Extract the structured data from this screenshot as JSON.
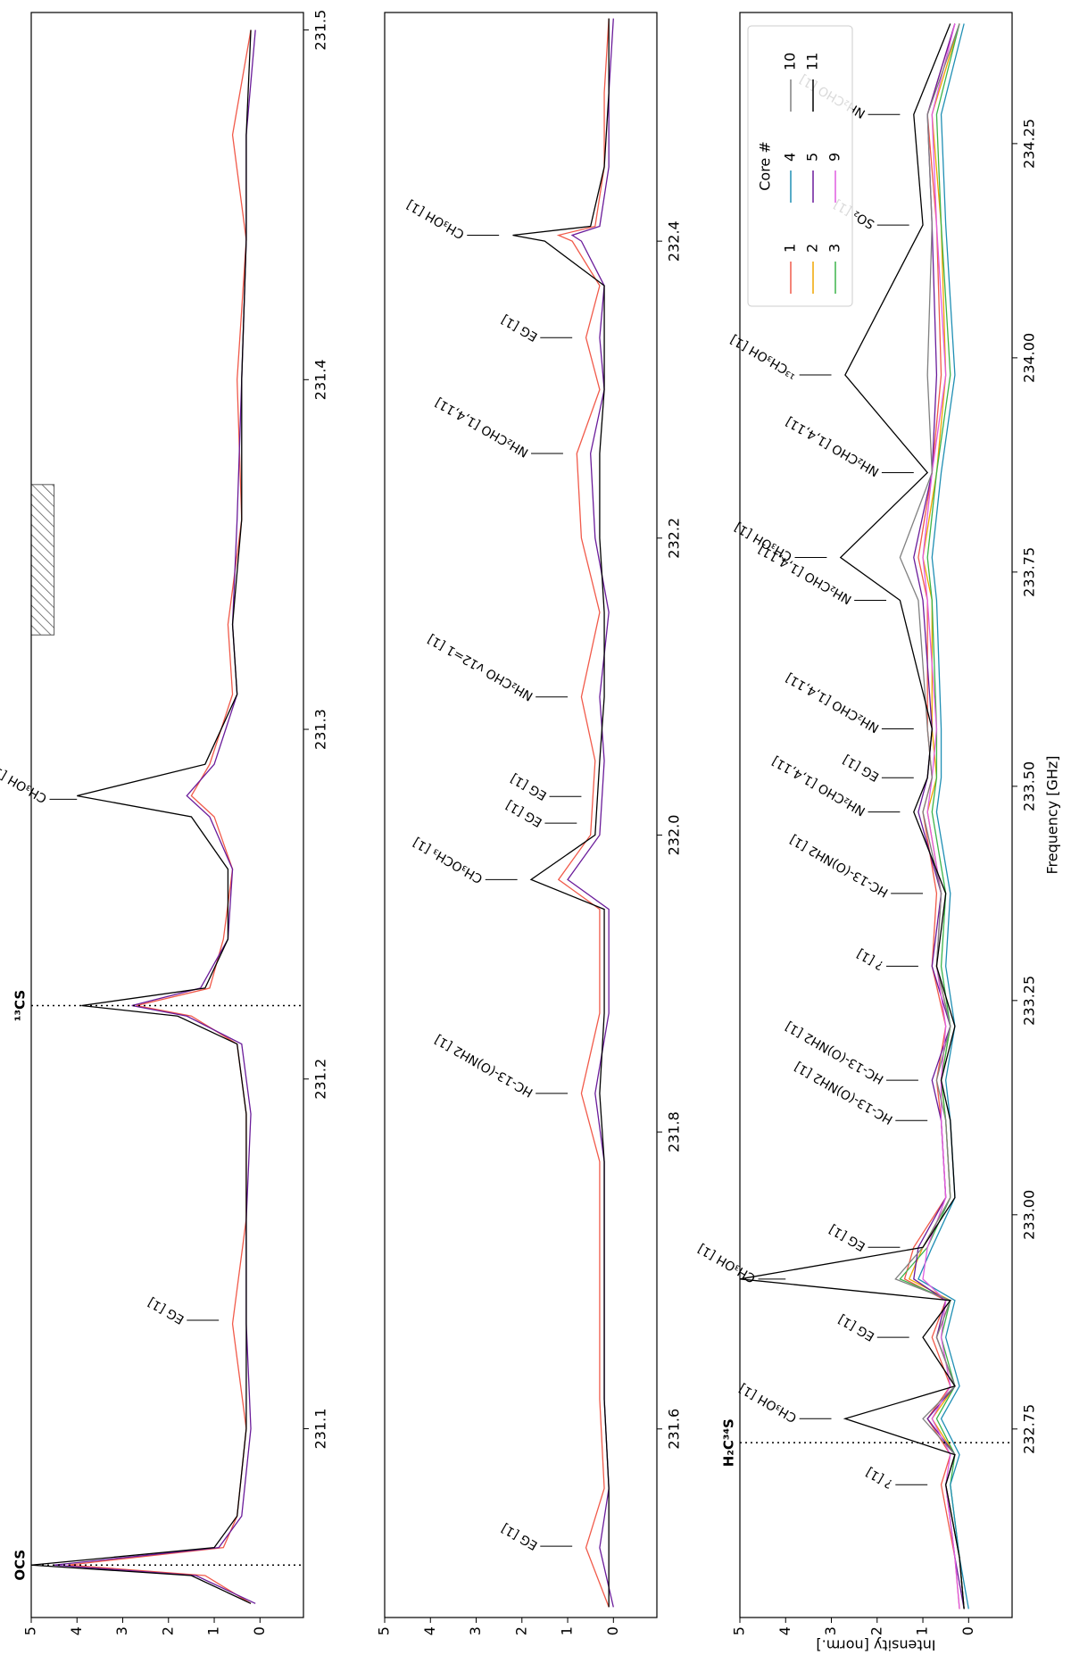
{
  "chart_data": [
    {
      "type": "line",
      "xlim": [
        231.046,
        231.505
      ],
      "xticks": [
        231.1,
        231.2,
        231.3,
        231.4,
        231.5
      ],
      "ylim": [
        -0.95,
        5
      ],
      "yticks": [
        0,
        1,
        2,
        3,
        4,
        5
      ],
      "x": [
        231.05,
        231.058,
        231.061,
        231.066,
        231.075,
        231.1,
        231.13,
        231.16,
        231.19,
        231.21,
        231.218,
        231.221,
        231.226,
        231.24,
        231.26,
        231.275,
        231.281,
        231.29,
        231.31,
        231.33,
        231.36,
        231.4,
        231.44,
        231.47,
        231.5
      ],
      "series": [
        {
          "color": "#f15a4a",
          "values": [
            0.2,
            1.2,
            4.2,
            0.8,
            0.5,
            0.3,
            0.6,
            0.3,
            0.3,
            0.5,
            1.5,
            2.7,
            1.1,
            0.8,
            0.6,
            1.0,
            1.5,
            1.1,
            0.6,
            0.7,
            0.4,
            0.5,
            0.3,
            0.6,
            0.2
          ]
        },
        {
          "color": "#6a1b9a",
          "values": [
            0.1,
            1.4,
            4.5,
            0.9,
            0.4,
            0.2,
            0.3,
            0.3,
            0.2,
            0.4,
            1.6,
            2.8,
            1.3,
            0.7,
            0.6,
            1.1,
            1.6,
            1.0,
            0.5,
            0.6,
            0.5,
            0.4,
            0.3,
            0.3,
            0.1
          ]
        },
        {
          "color": "#000000",
          "values": [
            0.2,
            1.5,
            5.0,
            1.0,
            0.5,
            0.3,
            0.3,
            0.3,
            0.3,
            0.5,
            1.8,
            3.9,
            1.2,
            0.7,
            0.7,
            1.5,
            4.0,
            1.2,
            0.5,
            0.6,
            0.4,
            0.4,
            0.3,
            0.3,
            0.2
          ]
        }
      ],
      "shaded_range": [
        231.327,
        231.37
      ],
      "markers": [
        {
          "label": "OCS",
          "x": 231.061
        },
        {
          "label": "¹³CS",
          "x": 231.221
        }
      ],
      "annotations": [
        {
          "text": "EG [1]",
          "x": 231.131
        },
        {
          "text": "CH₃OH [1]",
          "x": 231.28
        }
      ]
    },
    {
      "type": "line",
      "xlim": [
        231.473,
        232.554
      ],
      "xticks": [
        231.6,
        231.8,
        {
          "value": 232,
          "label": "232.0"
        },
        232.2,
        232.4
      ],
      "ylim": [
        -0.95,
        5
      ],
      "yticks": [
        0,
        1,
        2,
        3,
        4,
        5
      ],
      "x": [
        231.48,
        231.52,
        231.56,
        231.62,
        231.7,
        231.78,
        231.826,
        231.88,
        231.95,
        231.97,
        232.0,
        232.05,
        232.093,
        232.15,
        232.2,
        232.257,
        232.3,
        232.335,
        232.37,
        232.4,
        232.404,
        232.41,
        232.45,
        232.5,
        232.55
      ],
      "series": [
        {
          "color": "#f15a4a",
          "values": [
            0.1,
            0.6,
            0.2,
            0.3,
            0.3,
            0.3,
            0.7,
            0.3,
            0.3,
            1.2,
            0.5,
            0.4,
            0.7,
            0.3,
            0.7,
            0.8,
            0.3,
            0.6,
            0.3,
            0.9,
            1.2,
            0.4,
            0.2,
            0.2,
            0.1
          ]
        },
        {
          "color": "#6a1b9a",
          "values": [
            0,
            0.3,
            0.1,
            0.2,
            0.2,
            0.2,
            0.4,
            0.1,
            0.1,
            1.0,
            0.3,
            0.2,
            0.3,
            0.1,
            0.4,
            0.5,
            0.2,
            0.3,
            0.2,
            0.7,
            0.9,
            0.3,
            0.1,
            0.1,
            0
          ]
        },
        {
          "color": "#000000",
          "values": [
            0.1,
            0.1,
            0.1,
            0.2,
            0.2,
            0.2,
            0.3,
            0.2,
            0.2,
            1.8,
            0.4,
            0.3,
            0.2,
            0.2,
            0.3,
            0.3,
            0.2,
            0.2,
            0.2,
            1.5,
            2.2,
            0.5,
            0.2,
            0.1,
            0.1
          ]
        }
      ],
      "annotations": [
        {
          "text": "EG [1]",
          "x": 231.521
        },
        {
          "text": "HC-13-(O)NH2 [1]",
          "x": 231.826
        },
        {
          "text": "CH₃OCH₃ [1]",
          "x": 231.97
        },
        {
          "text": "EG [1]",
          "x": 232.008
        },
        {
          "text": "EG [1]",
          "x": 232.026
        },
        {
          "text": "NH₂CHO v12=1 [1]",
          "x": 232.093
        },
        {
          "text": "NH₂CHO [1,4,11]",
          "x": 232.257
        },
        {
          "text": "EG [1]",
          "x": 232.335
        },
        {
          "text": "CH₃OH [1]",
          "x": 232.404
        }
      ]
    },
    {
      "type": "line",
      "xlim": [
        232.53,
        234.403
      ],
      "xticks": [
        232.75,
        {
          "value": 233,
          "label": "233.00"
        },
        233.25,
        {
          "value": 233.5,
          "label": "233.50"
        },
        233.75,
        {
          "value": 234,
          "label": "234.00"
        },
        234.25
      ],
      "ylim": [
        -0.95,
        5
      ],
      "yticks": [
        0,
        1,
        2,
        3,
        4,
        5
      ],
      "xlabel": "Frequency [GHz]",
      "ylabel": "Intensity [norm.]",
      "legend": "upper right",
      "legend_title": "Core #",
      "x": [
        232.54,
        232.6,
        232.685,
        232.72,
        232.762,
        232.8,
        232.857,
        232.9,
        232.925,
        232.962,
        233.02,
        233.11,
        233.157,
        233.22,
        233.29,
        233.375,
        233.47,
        233.51,
        233.567,
        233.717,
        233.767,
        233.866,
        233.98,
        234.155,
        234.284,
        234.39
      ],
      "series": [
        {
          "name": "1",
          "color": "#f15a4a",
          "values": [
            0.2,
            0.3,
            0.6,
            0.4,
            0.9,
            0.4,
            0.8,
            0.5,
            1.4,
            1.2,
            0.5,
            0.6,
            0.7,
            0.5,
            0.8,
            0.7,
            1.0,
            0.8,
            0.9,
            0.9,
            1.1,
            0.8,
            0.6,
            0.7,
            0.9,
            0.3
          ]
        },
        {
          "name": "2",
          "color": "#f0a500",
          "values": [
            0.1,
            0.2,
            0.5,
            0.3,
            0.8,
            0.3,
            0.7,
            0.4,
            1.3,
            1.0,
            0.4,
            0.5,
            0.6,
            0.4,
            0.7,
            0.6,
            0.9,
            0.7,
            0.8,
            0.8,
            1.0,
            0.7,
            0.5,
            0.6,
            0.8,
            0.2
          ]
        },
        {
          "name": "3",
          "color": "#3cb44b",
          "values": [
            0.1,
            0.2,
            0.4,
            0.3,
            0.7,
            0.3,
            0.6,
            0.4,
            1.5,
            0.9,
            0.4,
            0.5,
            0.6,
            0.4,
            0.6,
            0.5,
            0.8,
            0.7,
            0.7,
            0.8,
            0.9,
            0.7,
            0.4,
            0.6,
            0.7,
            0.2
          ]
        },
        {
          "name": "4",
          "color": "#1f8fb4",
          "values": [
            0.0,
            0.2,
            0.4,
            0.2,
            0.6,
            0.2,
            0.5,
            0.3,
            1.1,
            0.8,
            0.3,
            0.4,
            0.5,
            0.3,
            0.5,
            0.4,
            0.7,
            0.6,
            0.6,
            0.7,
            0.8,
            0.6,
            0.3,
            0.5,
            0.6,
            0.1
          ]
        },
        {
          "name": "5",
          "color": "#6a1b9a",
          "values": [
            0.1,
            0.3,
            0.5,
            0.3,
            0.9,
            0.3,
            0.7,
            0.5,
            1.2,
            1.1,
            0.5,
            0.6,
            0.8,
            0.4,
            0.8,
            0.6,
            1.1,
            0.9,
            0.8,
            1.0,
            1.2,
            0.8,
            0.7,
            0.8,
            0.9,
            0.3
          ]
        },
        {
          "name": "9",
          "color": "#e05ce0",
          "values": [
            0.2,
            0.3,
            0.5,
            0.4,
            0.8,
            0.4,
            0.6,
            0.5,
            1.0,
            0.9,
            0.5,
            0.6,
            0.6,
            0.5,
            0.7,
            0.6,
            0.9,
            0.8,
            0.7,
            0.9,
            1.0,
            0.8,
            0.5,
            0.7,
            0.8,
            0.3
          ]
        },
        {
          "name": "10",
          "color": "#808080",
          "values": [
            0.1,
            0.2,
            0.5,
            0.3,
            1.0,
            0.3,
            0.7,
            0.4,
            1.6,
            1.0,
            0.4,
            0.5,
            0.7,
            0.4,
            0.7,
            0.6,
            1.0,
            0.8,
            0.9,
            1.1,
            1.5,
            0.8,
            0.9,
            0.8,
            0.9,
            0.2
          ]
        },
        {
          "name": "11",
          "color": "#000000",
          "values": [
            0.1,
            0.2,
            0.5,
            0.3,
            2.7,
            0.3,
            1.0,
            0.4,
            5.0,
            1.0,
            0.3,
            0.4,
            0.6,
            0.3,
            0.7,
            0.5,
            1.2,
            0.9,
            0.8,
            1.5,
            2.8,
            0.9,
            2.7,
            1.0,
            1.2,
            0.4
          ]
        }
      ],
      "markers": [
        {
          "label": "H₂C³⁴S",
          "x": 232.734
        }
      ],
      "annotations": [
        {
          "text": "? [1]",
          "x": 232.685
        },
        {
          "text": "CH₃OH [1]",
          "x": 232.762
        },
        {
          "text": "EG [1]",
          "x": 232.857
        },
        {
          "text": "CH₃OH [1]",
          "x": 232.925
        },
        {
          "text": "EG [1]",
          "x": 232.962
        },
        {
          "text": "HC-13-(O)NH2 [1]",
          "x": 233.11
        },
        {
          "text": "HC-13-(O)NH2 [1]",
          "x": 233.157
        },
        {
          "text": "? [1]",
          "x": 233.29
        },
        {
          "text": "HC-13-(O)NH2 [1]",
          "x": 233.375
        },
        {
          "text": "NH₂CHO [1,4,11]",
          "x": 233.47
        },
        {
          "text": "EG [1]",
          "x": 233.51
        },
        {
          "text": "NH₂CHO [1,4,11]",
          "x": 233.567
        },
        {
          "text": "NH₂CHO [1,4,11]",
          "x": 233.717
        },
        {
          "text": "CH₃OH [1]",
          "x": 233.767
        },
        {
          "text": "NH₂CHO [1,4,11]",
          "x": 233.866
        },
        {
          "text": "¹³CH₃OH [1]",
          "x": 233.98
        },
        {
          "text": "SO₂ [1]",
          "x": 234.155
        },
        {
          "text": "NH₂CHO [1]",
          "x": 234.284
        }
      ]
    }
  ]
}
